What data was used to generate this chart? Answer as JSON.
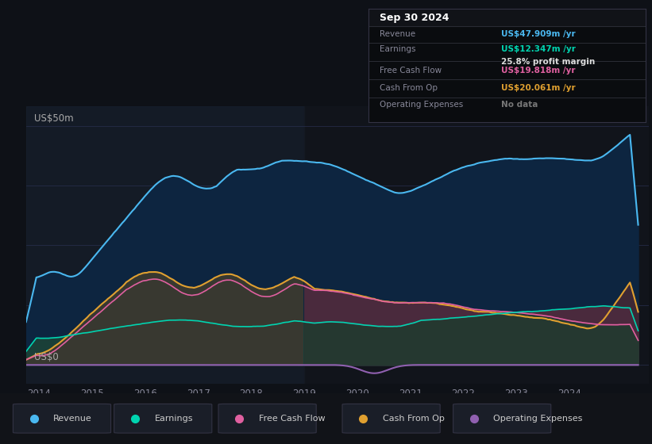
{
  "bg_color": "#0e1117",
  "chart_bg": "#0e1117",
  "title": "Sep 30 2024",
  "info_rows": [
    {
      "label": "Revenue",
      "value": "US$47.909m /yr",
      "value_color": "#4ab8f0"
    },
    {
      "label": "Earnings",
      "value": "US$12.347m /yr",
      "value_color": "#00d4b0"
    },
    {
      "label": "",
      "value": "25.8% profit margin",
      "value_color": "#dddddd"
    },
    {
      "label": "Free Cash Flow",
      "value": "US$19.818m /yr",
      "value_color": "#e060a0"
    },
    {
      "label": "Cash From Op",
      "value": "US$20.061m /yr",
      "value_color": "#e0a030"
    },
    {
      "label": "Operating Expenses",
      "value": "No data",
      "value_color": "#777777"
    }
  ],
  "ylabel_top": "US$50m",
  "ylabel_bottom": "US$0",
  "x_ticks": [
    2014,
    2015,
    2016,
    2017,
    2018,
    2019,
    2020,
    2021,
    2022,
    2023,
    2024
  ],
  "shade_boundary": 2019.0,
  "legend": [
    {
      "label": "Revenue",
      "color": "#4ab8f0"
    },
    {
      "label": "Earnings",
      "color": "#00d4b0"
    },
    {
      "label": "Free Cash Flow",
      "color": "#e060a0"
    },
    {
      "label": "Cash From Op",
      "color": "#e0a030"
    },
    {
      "label": "Operating Expenses",
      "color": "#9060b0"
    }
  ]
}
